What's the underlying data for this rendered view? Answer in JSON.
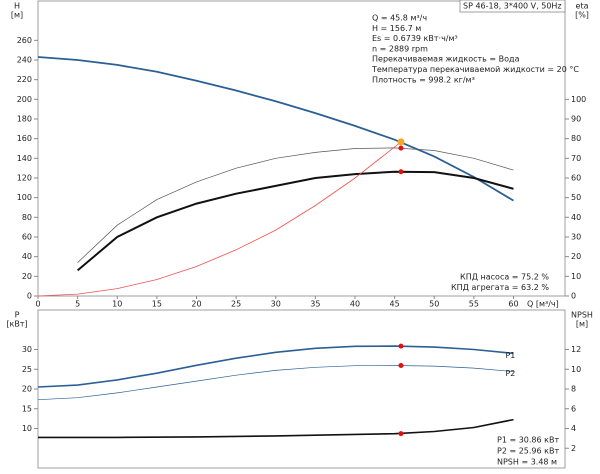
{
  "chart_data": [
    {
      "type": "line",
      "title": "SP 46-18, 3*400 V, 50Hz",
      "ylabel": "H",
      "yunit": "[м]",
      "y2label": "eta",
      "y2unit": "[%]",
      "xlabel": "Q [м³/ч]",
      "xlim": [
        0,
        66.5
      ],
      "xticks": [
        0,
        5,
        10,
        15,
        20,
        25,
        30,
        35,
        40,
        45,
        50,
        55,
        60
      ],
      "ylim": [
        0,
        300
      ],
      "yticks": [
        0,
        20,
        40,
        60,
        80,
        100,
        120,
        140,
        160,
        180,
        200,
        220,
        240,
        260
      ],
      "y2lim": [
        0,
        150
      ],
      "y2ticks": [
        0,
        10,
        20,
        30,
        40,
        50,
        60,
        70,
        80,
        90,
        100
      ],
      "series": [
        {
          "color": "#2b5f96",
          "linewidth": 1.8,
          "x": [
            0,
            5,
            10,
            15,
            20,
            25,
            30,
            35,
            40,
            45,
            50,
            55,
            60
          ],
          "values": [
            243,
            240,
            235,
            228,
            219,
            209,
            198,
            186,
            173,
            159,
            142,
            121,
            97
          ]
        },
        {
          "color": "#555555",
          "linewidth": 0.7,
          "axis": "y2",
          "x": [
            5,
            10,
            15,
            20,
            25,
            30,
            35,
            40,
            45,
            50,
            55,
            60
          ],
          "values": [
            17,
            36,
            49,
            58,
            65,
            70,
            73,
            75,
            75.3,
            74,
            70,
            64
          ]
        },
        {
          "color": "#111111",
          "linewidth": 2,
          "axis": "y2",
          "x": [
            5,
            10,
            15,
            20,
            25,
            30,
            35,
            40,
            45,
            50,
            55,
            60
          ],
          "values": [
            13,
            30,
            40,
            47,
            52,
            56,
            60,
            62,
            63.2,
            63,
            60,
            54.5
          ]
        },
        {
          "color": "#f05050",
          "linewidth": 0.8,
          "x": [
            0,
            5,
            10,
            15,
            20,
            25,
            30,
            35,
            40,
            45.8
          ],
          "values": [
            0,
            1.9,
            7.5,
            16.8,
            30,
            47,
            67,
            92,
            120,
            156.7
          ]
        }
      ],
      "points": [
        {
          "x": 45.8,
          "y": 156.7,
          "color": "#f5a623"
        },
        {
          "x": 45.8,
          "y": 75.2,
          "axis": "y2",
          "color": "#e01010"
        },
        {
          "x": 45.8,
          "y": 63.2,
          "axis": "y2",
          "color": "#e01010"
        }
      ],
      "annotations": [
        "Q = 45.8 м³/ч",
        "H = 156.7 м",
        "Es = 0.6739 кВт·ч/м³",
        "n = 2889 rpm",
        "Перекачиваемая жидкость = Вода",
        "Температура перекачиваемой жидкости = 20 °C",
        "Плотность = 998.2 кг/м³"
      ],
      "notes": [
        "КПД насоса = 75.2 %",
        "КПД агрегата = 63.2 %"
      ]
    },
    {
      "type": "line",
      "ylabel": "P",
      "yunit": "[кВт]",
      "y2label": "NPSH",
      "y2unit": "[м]",
      "xlim": [
        0,
        66.5
      ],
      "ylim": [
        0,
        40
      ],
      "yticks": [
        10,
        15,
        20,
        25,
        30
      ],
      "y2lim": [
        0,
        16
      ],
      "y2ticks": [
        2,
        4,
        6,
        8,
        10,
        12
      ],
      "series": [
        {
          "name": "P1",
          "color": "#2b5f96",
          "linewidth": 1.6,
          "x": [
            0,
            5,
            10,
            15,
            20,
            25,
            30,
            35,
            40,
            45,
            50,
            55,
            60
          ],
          "values": [
            20.5,
            21,
            22.3,
            24,
            26,
            27.8,
            29.3,
            30.3,
            30.8,
            30.86,
            30.6,
            30,
            29
          ]
        },
        {
          "name": "P2",
          "color": "#2b5f96",
          "linewidth": 0.7,
          "x": [
            0,
            5,
            10,
            15,
            20,
            25,
            30,
            35,
            40,
            45,
            50,
            55,
            60
          ],
          "values": [
            17.3,
            17.8,
            19,
            20.5,
            22,
            23.5,
            24.7,
            25.5,
            25.9,
            25.96,
            25.8,
            25.3,
            24.4
          ]
        },
        {
          "color": "#111111",
          "linewidth": 1.6,
          "axis": "y2",
          "x": [
            0,
            10,
            20,
            30,
            40,
            45,
            50,
            55,
            60
          ],
          "values": [
            3.1,
            3.1,
            3.15,
            3.25,
            3.4,
            3.47,
            3.7,
            4.1,
            4.9
          ]
        }
      ],
      "points": [
        {
          "x": 45.8,
          "y": 30.86,
          "color": "#e01010"
        },
        {
          "x": 45.8,
          "y": 25.96,
          "color": "#e01010"
        },
        {
          "x": 45.8,
          "y": 3.48,
          "axis": "y2",
          "color": "#e01010"
        }
      ],
      "notes": [
        "P1 = 30.86 кВт",
        "P2 = 25.96 кВт",
        "NPSH = 3.48 м"
      ]
    }
  ]
}
